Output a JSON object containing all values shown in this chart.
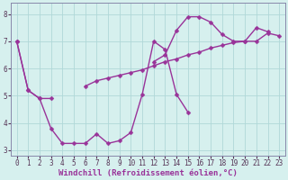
{
  "x_all": [
    0,
    1,
    2,
    3,
    4,
    5,
    6,
    7,
    8,
    9,
    10,
    11,
    12,
    13,
    14,
    15,
    16,
    17,
    18,
    19,
    20,
    21,
    22,
    23
  ],
  "line1_y": [
    7.0,
    5.2,
    4.9,
    3.8,
    3.25,
    3.25,
    3.25,
    3.6,
    3.25,
    3.35,
    3.65,
    5.05,
    7.0,
    6.7,
    5.05,
    4.4,
    null,
    null,
    null,
    null,
    null,
    null,
    null,
    null
  ],
  "line2_y": [
    7.0,
    5.2,
    4.9,
    4.9,
    null,
    null,
    5.35,
    5.55,
    5.65,
    5.75,
    5.85,
    5.95,
    6.1,
    6.25,
    6.35,
    6.5,
    6.6,
    6.75,
    6.85,
    6.95,
    7.0,
    7.0,
    7.3,
    7.2
  ],
  "line3_y": [
    null,
    null,
    null,
    null,
    null,
    null,
    null,
    null,
    null,
    null,
    null,
    null,
    6.25,
    6.5,
    7.4,
    7.9,
    7.9,
    7.7,
    7.25,
    7.0,
    7.0,
    7.5,
    7.35,
    null
  ],
  "xlabel": "Windchill (Refroidissement éolien,°C)",
  "xlim": [
    -0.5,
    23.5
  ],
  "ylim": [
    2.8,
    8.4
  ],
  "yticks": [
    3,
    4,
    5,
    6,
    7,
    8
  ],
  "xticks": [
    0,
    1,
    2,
    3,
    4,
    5,
    6,
    7,
    8,
    9,
    10,
    11,
    12,
    13,
    14,
    15,
    16,
    17,
    18,
    19,
    20,
    21,
    22,
    23
  ],
  "line_color": "#993399",
  "bg_color": "#d6f0ee",
  "grid_color": "#b0d8d8",
  "markersize": 2.5,
  "linewidth": 1.0,
  "xlabel_fontsize": 6.5,
  "tick_fontsize": 5.5,
  "tick_color": "#553355",
  "spine_color": "#8888aa"
}
